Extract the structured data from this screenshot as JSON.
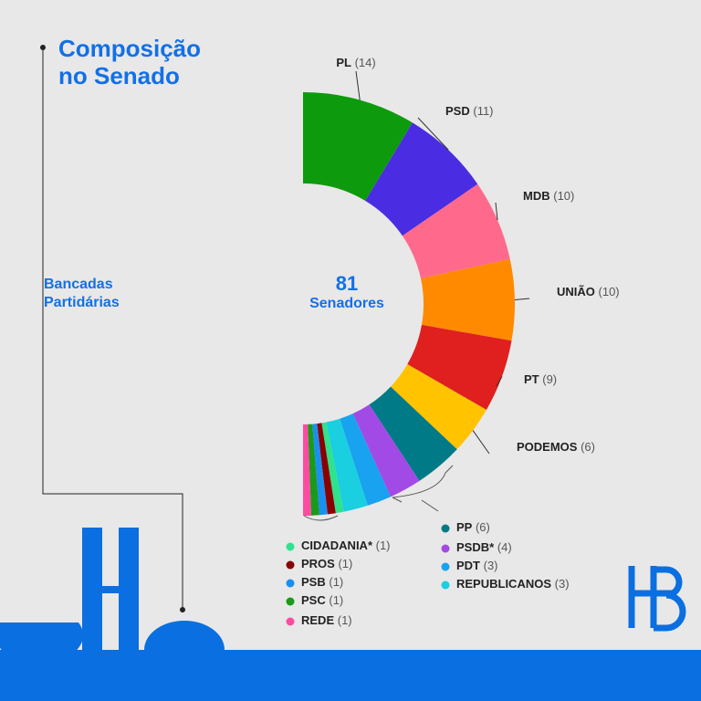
{
  "chart_data": {
    "type": "pie",
    "title": "Composição no Senado",
    "subtitle": "Bancadas Partidárias",
    "total": 81,
    "total_label": "Senadores",
    "categories": [
      "PL",
      "PSD",
      "MDB",
      "UNIÃO",
      "PT",
      "PODEMOS",
      "PP",
      "PSDB*",
      "PDT",
      "REPUBLICANOS",
      "CIDADANIA*",
      "PROS",
      "PSB",
      "PSC",
      "REDE"
    ],
    "values": [
      14,
      11,
      10,
      10,
      9,
      6,
      6,
      4,
      3,
      3,
      1,
      1,
      1,
      1,
      1
    ],
    "value_labels": [
      "(14)",
      "(11)",
      "(10)",
      "(10)",
      "(9)",
      "(6)",
      "(6)",
      "(4)",
      "(3)",
      "(3)",
      "(1)",
      "(1)",
      "(1)",
      "(1)",
      "(1)"
    ],
    "colors": [
      "#0d9b0d",
      "#4a2de2",
      "#ff6a8c",
      "#ff8a00",
      "#e01f1f",
      "#ffc300",
      "#007a86",
      "#a24ae6",
      "#18a2ef",
      "#19cfe0",
      "#2ee38c",
      "#8a0000",
      "#1a8ff0",
      "#1a9a1a",
      "#ff4aa2"
    ]
  }
}
